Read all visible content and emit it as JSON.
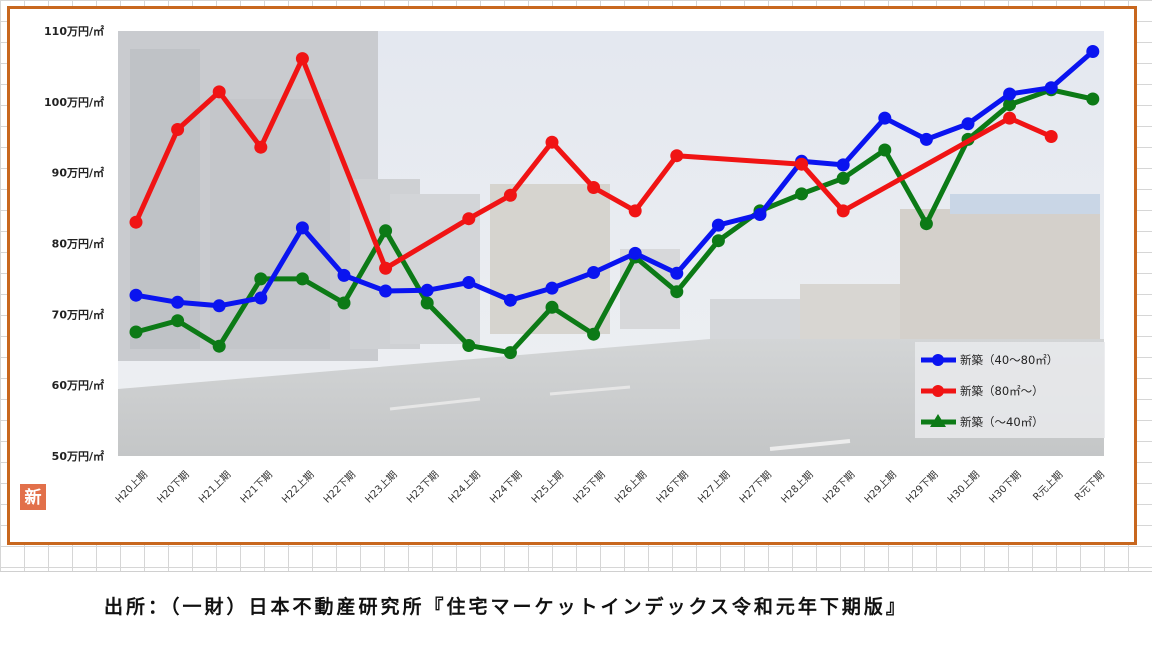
{
  "caption": "出所：（一財）日本不動産研究所『住宅マーケットインデックス令和元年下期版』",
  "badge_text": "新",
  "chart_data": {
    "type": "line",
    "categories": [
      "H20上期",
      "H20下期",
      "H21上期",
      "H21下期",
      "H22上期",
      "H22下期",
      "H23上期",
      "H23下期",
      "H24上期",
      "H24下期",
      "H25上期",
      "H25下期",
      "H26上期",
      "H26下期",
      "H27上期",
      "H27下期",
      "H28上期",
      "H28下期",
      "H29上期",
      "H29下期",
      "H30上期",
      "H30下期",
      "R元上期",
      "R元下期"
    ],
    "ylim": [
      50,
      110
    ],
    "yticks": [
      50,
      60,
      70,
      80,
      90,
      100,
      110
    ],
    "ytick_labels": [
      "50万円/㎡",
      "60万円/㎡",
      "70万円/㎡",
      "80万円/㎡",
      "90万円/㎡",
      "100万円/㎡",
      "110万円/㎡"
    ],
    "legend_position": "bottom-right",
    "series": [
      {
        "name": "新築（40～80㎡）",
        "color": "#0a14f0",
        "values": [
          72.7,
          71.7,
          71.2,
          72.3,
          82.2,
          75.5,
          73.3,
          73.4,
          74.5,
          72.0,
          73.7,
          75.9,
          78.6,
          75.8,
          82.6,
          84.1,
          91.6,
          91.1,
          97.7,
          94.7,
          96.9,
          101.1,
          102.0,
          107.1
        ]
      },
      {
        "name": "新築（80㎡～）",
        "color": "#f01414",
        "values": [
          83.0,
          96.1,
          101.4,
          93.6,
          106.1,
          null,
          76.5,
          null,
          83.5,
          86.8,
          94.3,
          87.9,
          84.6,
          92.4,
          null,
          null,
          91.2,
          84.6,
          null,
          null,
          null,
          97.7,
          95.1,
          null
        ]
      },
      {
        "name": "新築（～40㎡）",
        "color": "#0c7a16",
        "values": [
          67.5,
          69.1,
          65.5,
          75.0,
          75.0,
          71.6,
          81.8,
          71.6,
          65.6,
          64.6,
          71.0,
          67.2,
          78.1,
          73.2,
          80.4,
          84.6,
          87.0,
          89.2,
          93.2,
          82.8,
          94.7,
          99.6,
          101.7,
          100.4
        ]
      }
    ]
  }
}
